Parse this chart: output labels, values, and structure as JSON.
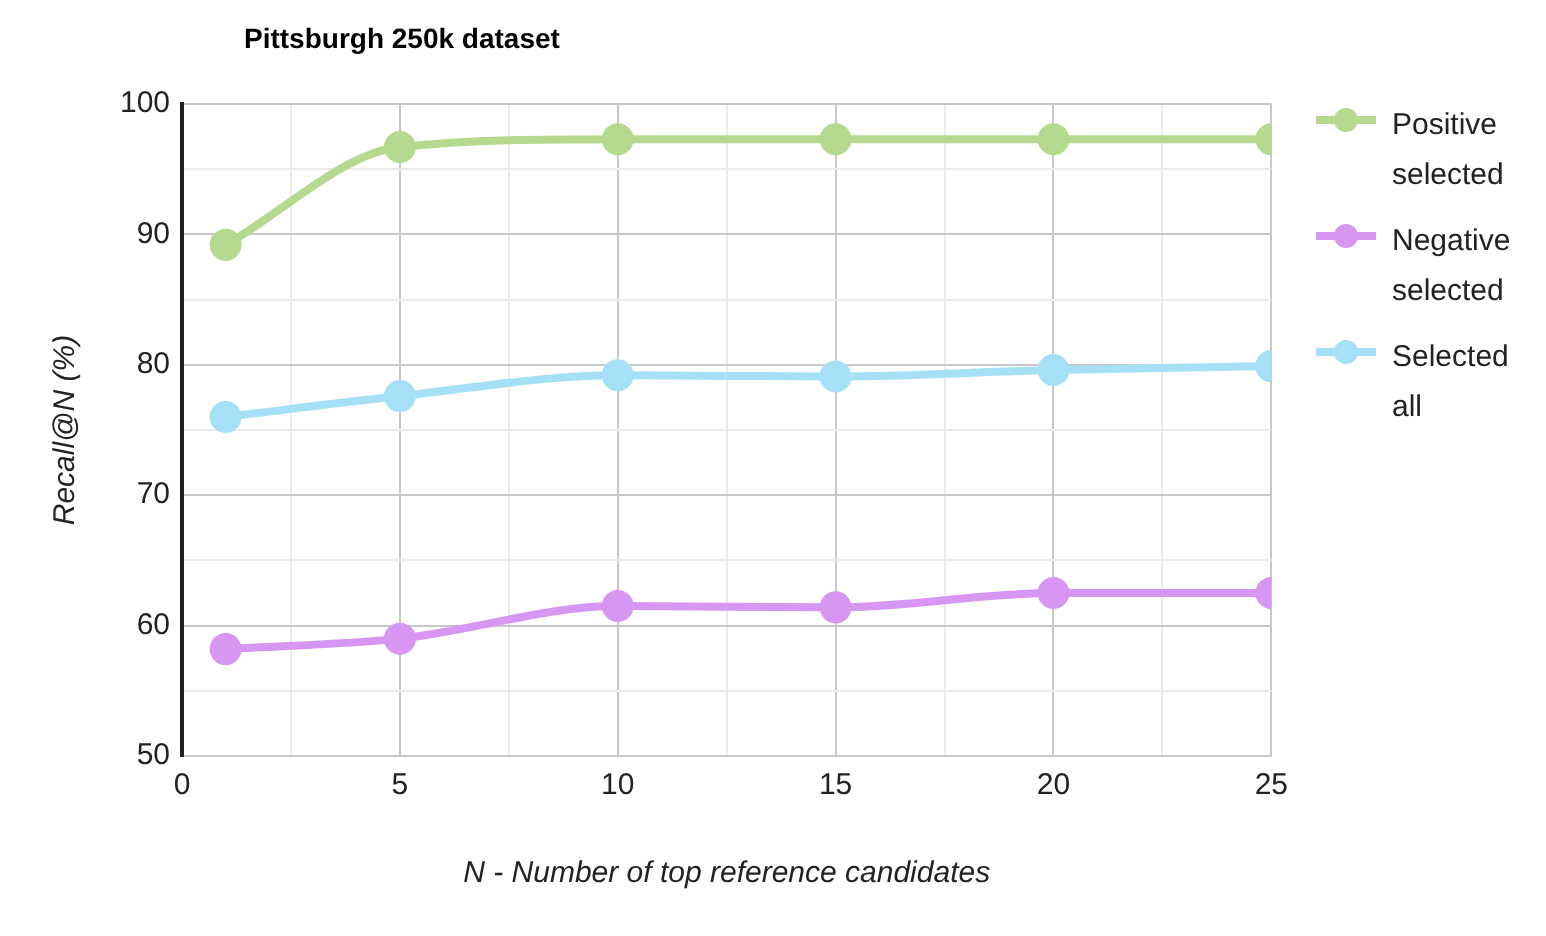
{
  "chart_data": {
    "type": "line",
    "title": "Pittsburgh 250k dataset",
    "xlabel": "N - Number of top reference candidates",
    "ylabel": "Recall@N (%)",
    "x": [
      1,
      5,
      10,
      15,
      20,
      25
    ],
    "series": [
      {
        "name": "Positive selected",
        "color": "#b5d98f",
        "values": [
          89.2,
          96.7,
          97.3,
          97.3,
          97.3,
          97.3
        ]
      },
      {
        "name": "Negative selected",
        "color": "#d796f2",
        "values": [
          58.2,
          59.0,
          61.5,
          61.4,
          62.5,
          62.5
        ]
      },
      {
        "name": "Selected all",
        "color": "#a6e0f7",
        "values": [
          76.0,
          77.6,
          79.2,
          79.1,
          79.6,
          79.9
        ]
      }
    ],
    "xlim": [
      0,
      25
    ],
    "xticks": [
      0,
      {
        "value": 2.5,
        "label": null
      },
      5,
      {
        "value": 7.5,
        "label": null
      },
      10,
      {
        "value": 12.5,
        "label": null
      },
      15,
      {
        "value": 17.5,
        "label": null
      },
      20,
      {
        "value": 22.5,
        "label": null
      },
      25
    ],
    "ylim": [
      50,
      100
    ],
    "yticks": [
      50,
      {
        "value": 55,
        "label": null
      },
      60,
      {
        "value": 65,
        "label": null
      },
      70,
      {
        "value": 75,
        "label": null
      },
      80,
      {
        "value": 85,
        "label": null
      },
      90,
      {
        "value": 95,
        "label": null
      },
      100
    ],
    "grid": true,
    "legend": "right",
    "marker": "circle",
    "line_style": "solid"
  }
}
